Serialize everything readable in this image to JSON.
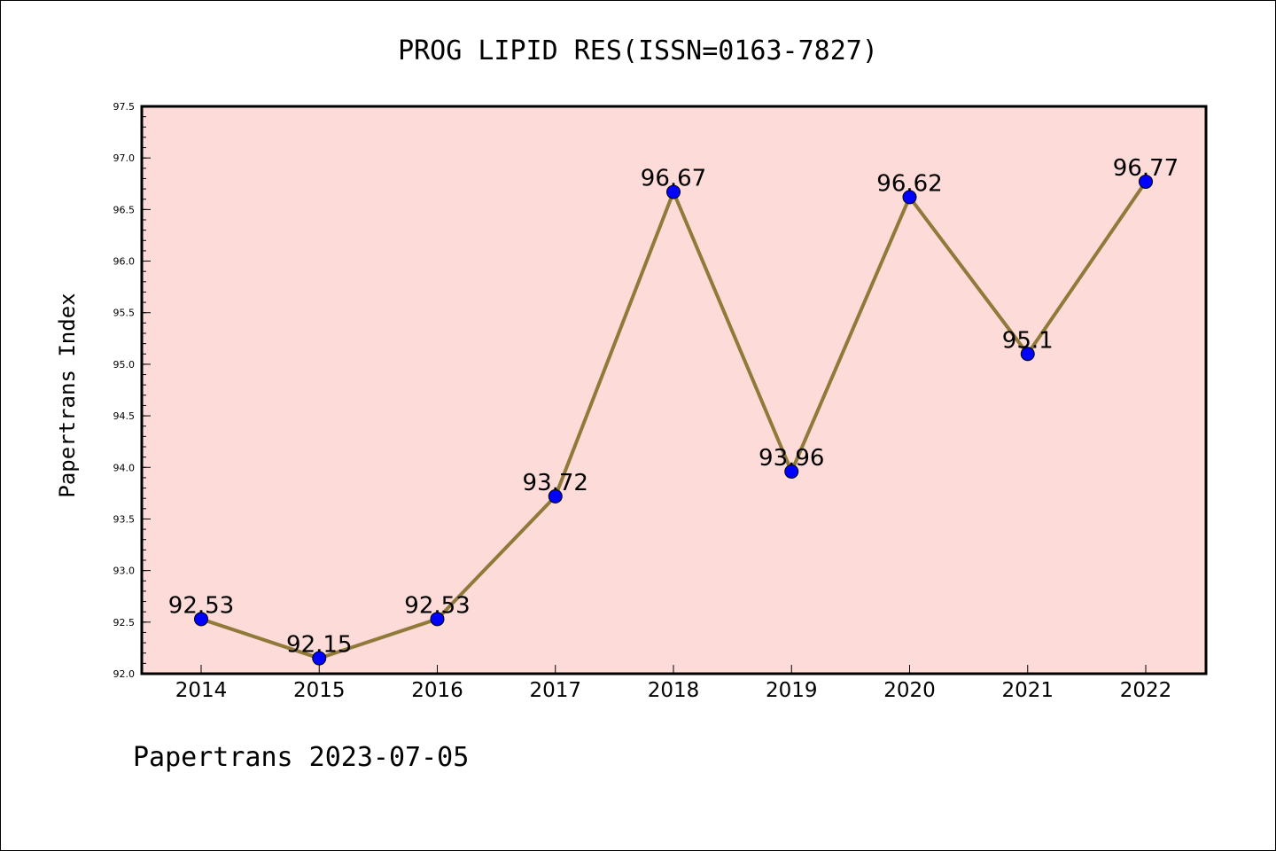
{
  "chart_data": {
    "type": "line",
    "title": "PROG LIPID RES(ISSN=0163-7827)",
    "xlabel": "",
    "ylabel": "Papertrans Index",
    "categories": [
      "2014",
      "2015",
      "2016",
      "2017",
      "2018",
      "2019",
      "2020",
      "2021",
      "2022"
    ],
    "values": [
      92.53,
      92.15,
      92.53,
      93.72,
      96.67,
      93.96,
      96.62,
      95.1,
      96.77
    ],
    "data_labels": [
      "92.53",
      "92.15",
      "92.53",
      "93.72",
      "96.67",
      "93.96",
      "96.62",
      "95.1",
      "96.77"
    ],
    "ylim": [
      92.0,
      97.5
    ],
    "yticks": [
      "92.0",
      "92.5",
      "93.0",
      "93.5",
      "94.0",
      "94.5",
      "95.0",
      "95.5",
      "96.0",
      "96.5",
      "97.0",
      "97.5"
    ],
    "line_color": "#8f7a3a",
    "marker_color": "#0000ff",
    "background_color": "#fddbd8",
    "grid": false,
    "legend": "none"
  },
  "footer": "Papertrans 2023-07-05"
}
